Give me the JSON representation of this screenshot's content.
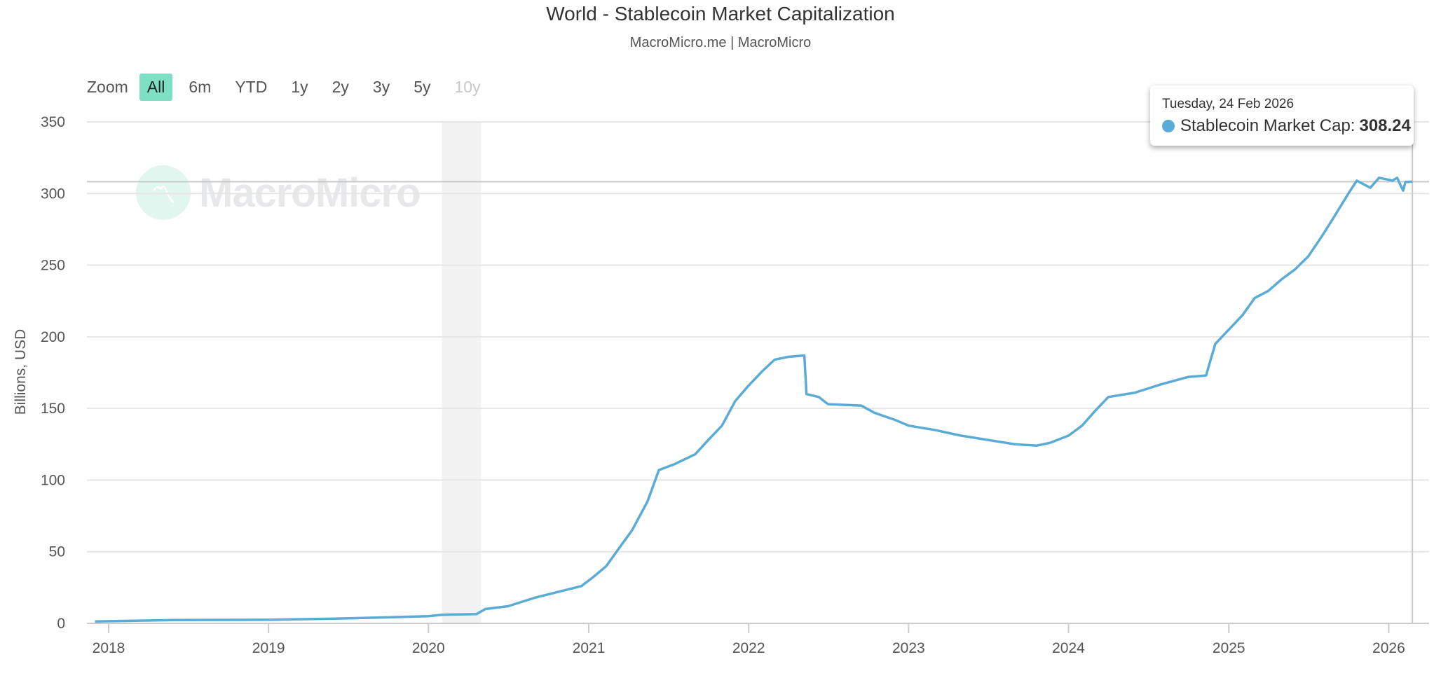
{
  "title": "World - Stablecoin Market Capitalization",
  "subtitle": "MacroMicro.me | MacroMicro",
  "zoom": {
    "label": "Zoom",
    "buttons": [
      {
        "label": "All",
        "state": "active"
      },
      {
        "label": "6m",
        "state": "normal"
      },
      {
        "label": "YTD",
        "state": "normal"
      },
      {
        "label": "1y",
        "state": "normal"
      },
      {
        "label": "2y",
        "state": "normal"
      },
      {
        "label": "3y",
        "state": "normal"
      },
      {
        "label": "5y",
        "state": "normal"
      },
      {
        "label": "10y",
        "state": "disabled"
      }
    ]
  },
  "watermark": {
    "text": "MacroMicro"
  },
  "tooltip": {
    "date": "Tuesday, 24 Feb 2026",
    "series": "Stablecoin Market Cap:",
    "value": "308.24"
  },
  "chart_data": {
    "type": "line",
    "title": "World - Stablecoin Market Capitalization",
    "ylabel": "Billions, USD",
    "xlabel": "",
    "ylim": [
      0,
      350
    ],
    "yticks": [
      0,
      50,
      100,
      150,
      200,
      250,
      300,
      350
    ],
    "xticks": [
      "2018",
      "2019",
      "2020",
      "2021",
      "2022",
      "2023",
      "2024",
      "2025",
      "2026"
    ],
    "grid": true,
    "line_color": "#5aabd6",
    "shaded_band": {
      "from": "2020-02-01",
      "to": "2020-04-30",
      "color": "#f2f2f2"
    },
    "crosshair": {
      "date": "2026-02-24",
      "value": 308.24
    },
    "series": [
      {
        "name": "Stablecoin Market Cap",
        "points": [
          [
            "2017-12-01",
            1.3
          ],
          [
            "2018-06-01",
            2.3
          ],
          [
            "2019-01-01",
            2.5
          ],
          [
            "2019-06-01",
            3.3
          ],
          [
            "2019-10-01",
            4.2
          ],
          [
            "2020-01-01",
            5
          ],
          [
            "2020-02-01",
            6
          ],
          [
            "2020-04-20",
            6.5
          ],
          [
            "2020-05-10",
            10
          ],
          [
            "2020-07-01",
            12
          ],
          [
            "2020-09-01",
            18
          ],
          [
            "2020-12-15",
            26
          ],
          [
            "2021-01-10",
            32
          ],
          [
            "2021-02-10",
            40
          ],
          [
            "2021-03-10",
            52
          ],
          [
            "2021-04-10",
            65
          ],
          [
            "2021-05-15",
            85
          ],
          [
            "2021-06-10",
            107
          ],
          [
            "2021-07-15",
            111
          ],
          [
            "2021-09-01",
            118
          ],
          [
            "2021-10-01",
            128
          ],
          [
            "2021-11-01",
            138
          ],
          [
            "2021-12-01",
            155
          ],
          [
            "2022-01-01",
            166
          ],
          [
            "2022-02-01",
            176
          ],
          [
            "2022-03-01",
            184
          ],
          [
            "2022-04-01",
            186
          ],
          [
            "2022-05-08",
            187
          ],
          [
            "2022-05-13",
            160
          ],
          [
            "2022-06-10",
            158
          ],
          [
            "2022-07-01",
            153
          ],
          [
            "2022-09-15",
            152
          ],
          [
            "2022-10-15",
            147
          ],
          [
            "2022-12-01",
            142
          ],
          [
            "2023-01-01",
            138
          ],
          [
            "2023-03-01",
            135
          ],
          [
            "2023-05-01",
            131
          ],
          [
            "2023-07-01",
            128
          ],
          [
            "2023-09-01",
            125
          ],
          [
            "2023-10-20",
            124
          ],
          [
            "2023-11-20",
            126
          ],
          [
            "2024-01-01",
            131
          ],
          [
            "2024-02-01",
            138
          ],
          [
            "2024-03-01",
            148
          ],
          [
            "2024-04-01",
            158
          ],
          [
            "2024-06-01",
            161
          ],
          [
            "2024-08-01",
            167
          ],
          [
            "2024-10-01",
            172
          ],
          [
            "2024-11-10",
            173
          ],
          [
            "2024-12-01",
            195
          ],
          [
            "2025-01-01",
            205
          ],
          [
            "2025-02-01",
            215
          ],
          [
            "2025-03-01",
            227
          ],
          [
            "2025-04-01",
            232
          ],
          [
            "2025-05-01",
            240
          ],
          [
            "2025-06-01",
            247
          ],
          [
            "2025-07-01",
            256
          ],
          [
            "2025-08-01",
            270
          ],
          [
            "2025-09-01",
            285
          ],
          [
            "2025-10-01",
            300
          ],
          [
            "2025-10-20",
            309
          ],
          [
            "2025-11-20",
            304
          ],
          [
            "2025-12-10",
            311
          ],
          [
            "2026-01-10",
            309
          ],
          [
            "2026-01-20",
            311
          ],
          [
            "2026-02-03",
            302
          ],
          [
            "2026-02-08",
            308
          ],
          [
            "2026-02-24",
            308.24
          ]
        ]
      }
    ]
  }
}
